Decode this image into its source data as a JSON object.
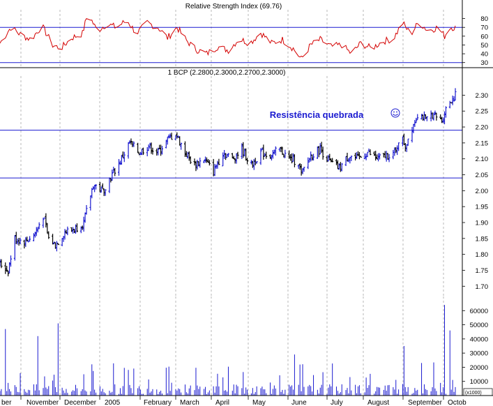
{
  "chart_data": [
    {
      "type": "line",
      "title": "Relative Strength Index (69.76)",
      "ylim": [
        25,
        90
      ],
      "yticks": [
        30,
        40,
        50,
        60,
        70,
        80
      ],
      "reference_lines": [
        70,
        30
      ],
      "series_color": "#d40000",
      "x_start": "2004-10-28",
      "x_end": "2005-09-30",
      "points": [
        [
          "2004-10-28",
          52
        ],
        [
          "2004-11-05",
          70
        ],
        [
          "2004-11-12",
          62
        ],
        [
          "2004-11-20",
          56
        ],
        [
          "2004-11-28",
          72
        ],
        [
          "2004-12-06",
          50
        ],
        [
          "2004-12-12",
          46
        ],
        [
          "2004-12-20",
          58
        ],
        [
          "2004-12-28",
          63
        ],
        [
          "2005-01-01",
          86
        ],
        [
          "2005-01-08",
          66
        ],
        [
          "2005-01-15",
          74
        ],
        [
          "2005-01-22",
          70
        ],
        [
          "2005-01-30",
          78
        ],
        [
          "2005-02-06",
          63
        ],
        [
          "2005-02-14",
          75
        ],
        [
          "2005-02-22",
          70
        ],
        [
          "2005-03-01",
          58
        ],
        [
          "2005-03-08",
          70
        ],
        [
          "2005-03-15",
          55
        ],
        [
          "2005-03-22",
          45
        ],
        [
          "2005-03-30",
          40
        ],
        [
          "2005-04-07",
          48
        ],
        [
          "2005-04-15",
          44
        ],
        [
          "2005-04-23",
          57
        ],
        [
          "2005-05-01",
          52
        ],
        [
          "2005-05-09",
          64
        ],
        [
          "2005-05-17",
          52
        ],
        [
          "2005-05-25",
          56
        ],
        [
          "2005-06-02",
          46
        ],
        [
          "2005-06-08",
          34
        ],
        [
          "2005-06-15",
          50
        ],
        [
          "2005-06-22",
          56
        ],
        [
          "2005-06-30",
          48
        ],
        [
          "2005-07-08",
          50
        ],
        [
          "2005-07-15",
          40
        ],
        [
          "2005-07-22",
          52
        ],
        [
          "2005-07-30",
          46
        ],
        [
          "2005-08-07",
          54
        ],
        [
          "2005-08-15",
          57
        ],
        [
          "2005-08-22",
          75
        ],
        [
          "2005-08-28",
          62
        ],
        [
          "2005-09-03",
          76
        ],
        [
          "2005-09-10",
          66
        ],
        [
          "2005-09-17",
          70
        ],
        [
          "2005-09-22",
          60
        ],
        [
          "2005-09-26",
          70
        ]
      ]
    },
    {
      "type": "candlestick",
      "title": "1 BCP (2.2800,2.3000,2.2700,2.3000)",
      "ylim": [
        1.67,
        2.36
      ],
      "yticks": [
        1.7,
        1.75,
        1.8,
        1.85,
        1.9,
        1.95,
        2.0,
        2.05,
        2.1,
        2.15,
        2.2,
        2.25,
        2.3
      ],
      "reference_lines": [
        2.19,
        2.04
      ],
      "annotation": "Resistência quebrada",
      "annotation_color": "#1a1ad0",
      "up_color": "#1a1ad0",
      "down_color": "#000000",
      "x_start": "2004-10-28",
      "x_end": "2005-09-30",
      "path": [
        [
          "2004-10-28",
          1.77
        ],
        [
          "2004-11-03",
          1.75
        ],
        [
          "2004-11-08",
          1.85
        ],
        [
          "2004-11-15",
          1.84
        ],
        [
          "2004-11-22",
          1.86
        ],
        [
          "2004-11-29",
          1.92
        ],
        [
          "2004-12-03",
          1.85
        ],
        [
          "2004-12-08",
          1.83
        ],
        [
          "2004-12-15",
          1.87
        ],
        [
          "2004-12-22",
          1.88
        ],
        [
          "2004-12-29",
          1.9
        ],
        [
          "2005-01-05",
          2.02
        ],
        [
          "2005-01-12",
          2.0
        ],
        [
          "2005-01-19",
          2.05
        ],
        [
          "2005-01-26",
          2.1
        ],
        [
          "2005-02-01",
          2.15
        ],
        [
          "2005-02-08",
          2.12
        ],
        [
          "2005-02-15",
          2.14
        ],
        [
          "2005-02-22",
          2.12
        ],
        [
          "2005-03-01",
          2.16
        ],
        [
          "2005-03-07",
          2.18
        ],
        [
          "2005-03-14",
          2.12
        ],
        [
          "2005-03-21",
          2.08
        ],
        [
          "2005-03-28",
          2.1
        ],
        [
          "2005-04-04",
          2.06
        ],
        [
          "2005-04-11",
          2.12
        ],
        [
          "2005-04-18",
          2.1
        ],
        [
          "2005-04-25",
          2.13
        ],
        [
          "2005-05-02",
          2.08
        ],
        [
          "2005-05-09",
          2.12
        ],
        [
          "2005-05-16",
          2.11
        ],
        [
          "2005-05-23",
          2.13
        ],
        [
          "2005-05-30",
          2.1
        ],
        [
          "2005-06-06",
          2.09
        ],
        [
          "2005-06-08",
          2.05
        ],
        [
          "2005-06-15",
          2.11
        ],
        [
          "2005-06-22",
          2.13
        ],
        [
          "2005-06-29",
          2.09
        ],
        [
          "2005-07-06",
          2.07
        ],
        [
          "2005-07-13",
          2.11
        ],
        [
          "2005-07-20",
          2.1
        ],
        [
          "2005-07-27",
          2.12
        ],
        [
          "2005-08-03",
          2.1
        ],
        [
          "2005-08-10",
          2.11
        ],
        [
          "2005-08-17",
          2.12
        ],
        [
          "2005-08-20",
          2.18
        ],
        [
          "2005-08-24",
          2.14
        ],
        [
          "2005-08-29",
          2.2
        ],
        [
          "2005-09-03",
          2.25
        ],
        [
          "2005-09-08",
          2.22
        ],
        [
          "2005-09-13",
          2.24
        ],
        [
          "2005-09-20",
          2.22
        ],
        [
          "2005-09-24",
          2.27
        ],
        [
          "2005-09-30",
          2.3
        ]
      ]
    },
    {
      "type": "bar",
      "ylim": [
        0,
        70000
      ],
      "yticks": [
        10000,
        20000,
        30000,
        40000,
        50000,
        60000
      ],
      "unit_label": "(x1000)",
      "bar_color": "#1a1ad0",
      "x_start": "2004-10-28",
      "x_end": "2005-09-30",
      "spikes": [
        [
          "2004-11-01",
          47000
        ],
        [
          "2004-11-25",
          42000
        ],
        [
          "2004-12-05",
          38000
        ],
        [
          "2004-12-10",
          51000
        ],
        [
          "2005-01-01",
          27000
        ],
        [
          "2005-03-26",
          32000
        ],
        [
          "2005-06-03",
          29000
        ],
        [
          "2005-08-23",
          35000
        ],
        [
          "2005-09-05",
          23000
        ],
        [
          "2005-09-22",
          64000
        ],
        [
          "2005-09-26",
          46000
        ]
      ]
    }
  ],
  "x_axis": {
    "months": [
      "ber",
      "November",
      "December",
      "2005",
      "February",
      "March",
      "April",
      "May",
      "June",
      "July",
      "August",
      "September",
      "Octob"
    ]
  }
}
